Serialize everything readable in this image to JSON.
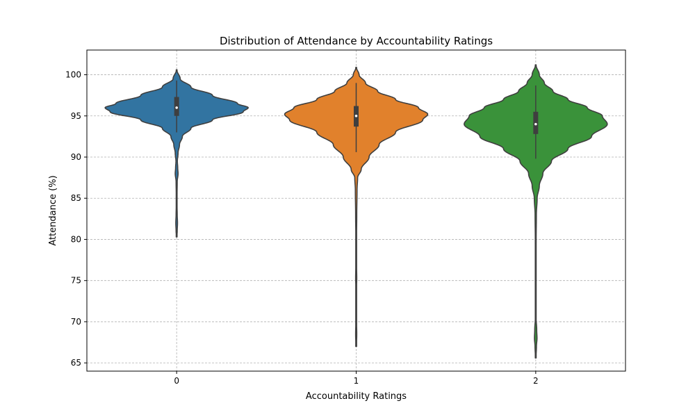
{
  "chart_data": {
    "type": "violin",
    "title": "Distribution of Attendance by Accountability Ratings",
    "xlabel": "Accountability Ratings",
    "ylabel": "Attendance (%)",
    "categories": [
      "0",
      "1",
      "2"
    ],
    "ylim": [
      64,
      103
    ],
    "yticks": [
      65,
      70,
      75,
      80,
      85,
      90,
      95,
      100
    ],
    "grid": true,
    "series": [
      {
        "category": "0",
        "color": "#3274a1",
        "min": 80.3,
        "max": 100.6,
        "q1": 95.0,
        "median": 96.0,
        "q3": 97.3,
        "whisker_low": 93.0,
        "whisker_high": 99.3,
        "density": [
          [
            80.3,
            0.003
          ],
          [
            81.0,
            0.008
          ],
          [
            82.0,
            0.012
          ],
          [
            83.0,
            0.008
          ],
          [
            84.0,
            0.006
          ],
          [
            85.5,
            0.006
          ],
          [
            87.0,
            0.008
          ],
          [
            88.0,
            0.02
          ],
          [
            88.7,
            0.015
          ],
          [
            89.5,
            0.01
          ],
          [
            90.5,
            0.02
          ],
          [
            91.5,
            0.04
          ],
          [
            92.5,
            0.08
          ],
          [
            93.5,
            0.2
          ],
          [
            94.5,
            0.5
          ],
          [
            95.5,
            0.93
          ],
          [
            96.0,
            1.0
          ],
          [
            96.5,
            0.85
          ],
          [
            97.5,
            0.5
          ],
          [
            98.5,
            0.2
          ],
          [
            99.5,
            0.05
          ],
          [
            100.6,
            0.003
          ]
        ]
      },
      {
        "category": "1",
        "color": "#e1812c",
        "min": 67.0,
        "max": 100.9,
        "q1": 93.7,
        "median": 95.0,
        "q3": 96.2,
        "whisker_low": 90.6,
        "whisker_high": 99.0,
        "density": [
          [
            67.0,
            0.004
          ],
          [
            68.5,
            0.008
          ],
          [
            70.0,
            0.005
          ],
          [
            72.0,
            0.003
          ],
          [
            74.0,
            0.004
          ],
          [
            75.3,
            0.008
          ],
          [
            77.0,
            0.005
          ],
          [
            80.0,
            0.005
          ],
          [
            83.0,
            0.008
          ],
          [
            86.0,
            0.012
          ],
          [
            87.5,
            0.02
          ],
          [
            88.5,
            0.07
          ],
          [
            90.0,
            0.18
          ],
          [
            91.5,
            0.32
          ],
          [
            93.0,
            0.55
          ],
          [
            94.5,
            0.93
          ],
          [
            95.2,
            1.0
          ],
          [
            96.0,
            0.87
          ],
          [
            97.0,
            0.55
          ],
          [
            98.0,
            0.3
          ],
          [
            99.0,
            0.13
          ],
          [
            100.0,
            0.04
          ],
          [
            100.9,
            0.003
          ]
        ]
      },
      {
        "category": "2",
        "color": "#3a923a",
        "min": 65.6,
        "max": 101.2,
        "q1": 92.8,
        "median": 94.0,
        "q3": 95.5,
        "whisker_low": 89.8,
        "whisker_high": 98.7,
        "density": [
          [
            65.6,
            0.004
          ],
          [
            67.0,
            0.01
          ],
          [
            68.0,
            0.018
          ],
          [
            69.0,
            0.014
          ],
          [
            70.5,
            0.005
          ],
          [
            73.0,
            0.003
          ],
          [
            76.0,
            0.004
          ],
          [
            80.0,
            0.006
          ],
          [
            83.0,
            0.009
          ],
          [
            85.0,
            0.02
          ],
          [
            86.5,
            0.05
          ],
          [
            88.0,
            0.1
          ],
          [
            89.5,
            0.22
          ],
          [
            91.0,
            0.45
          ],
          [
            92.5,
            0.78
          ],
          [
            94.0,
            1.0
          ],
          [
            95.0,
            0.93
          ],
          [
            96.0,
            0.72
          ],
          [
            97.0,
            0.45
          ],
          [
            98.0,
            0.24
          ],
          [
            99.0,
            0.12
          ],
          [
            100.0,
            0.05
          ],
          [
            101.2,
            0.004
          ]
        ]
      }
    ]
  }
}
